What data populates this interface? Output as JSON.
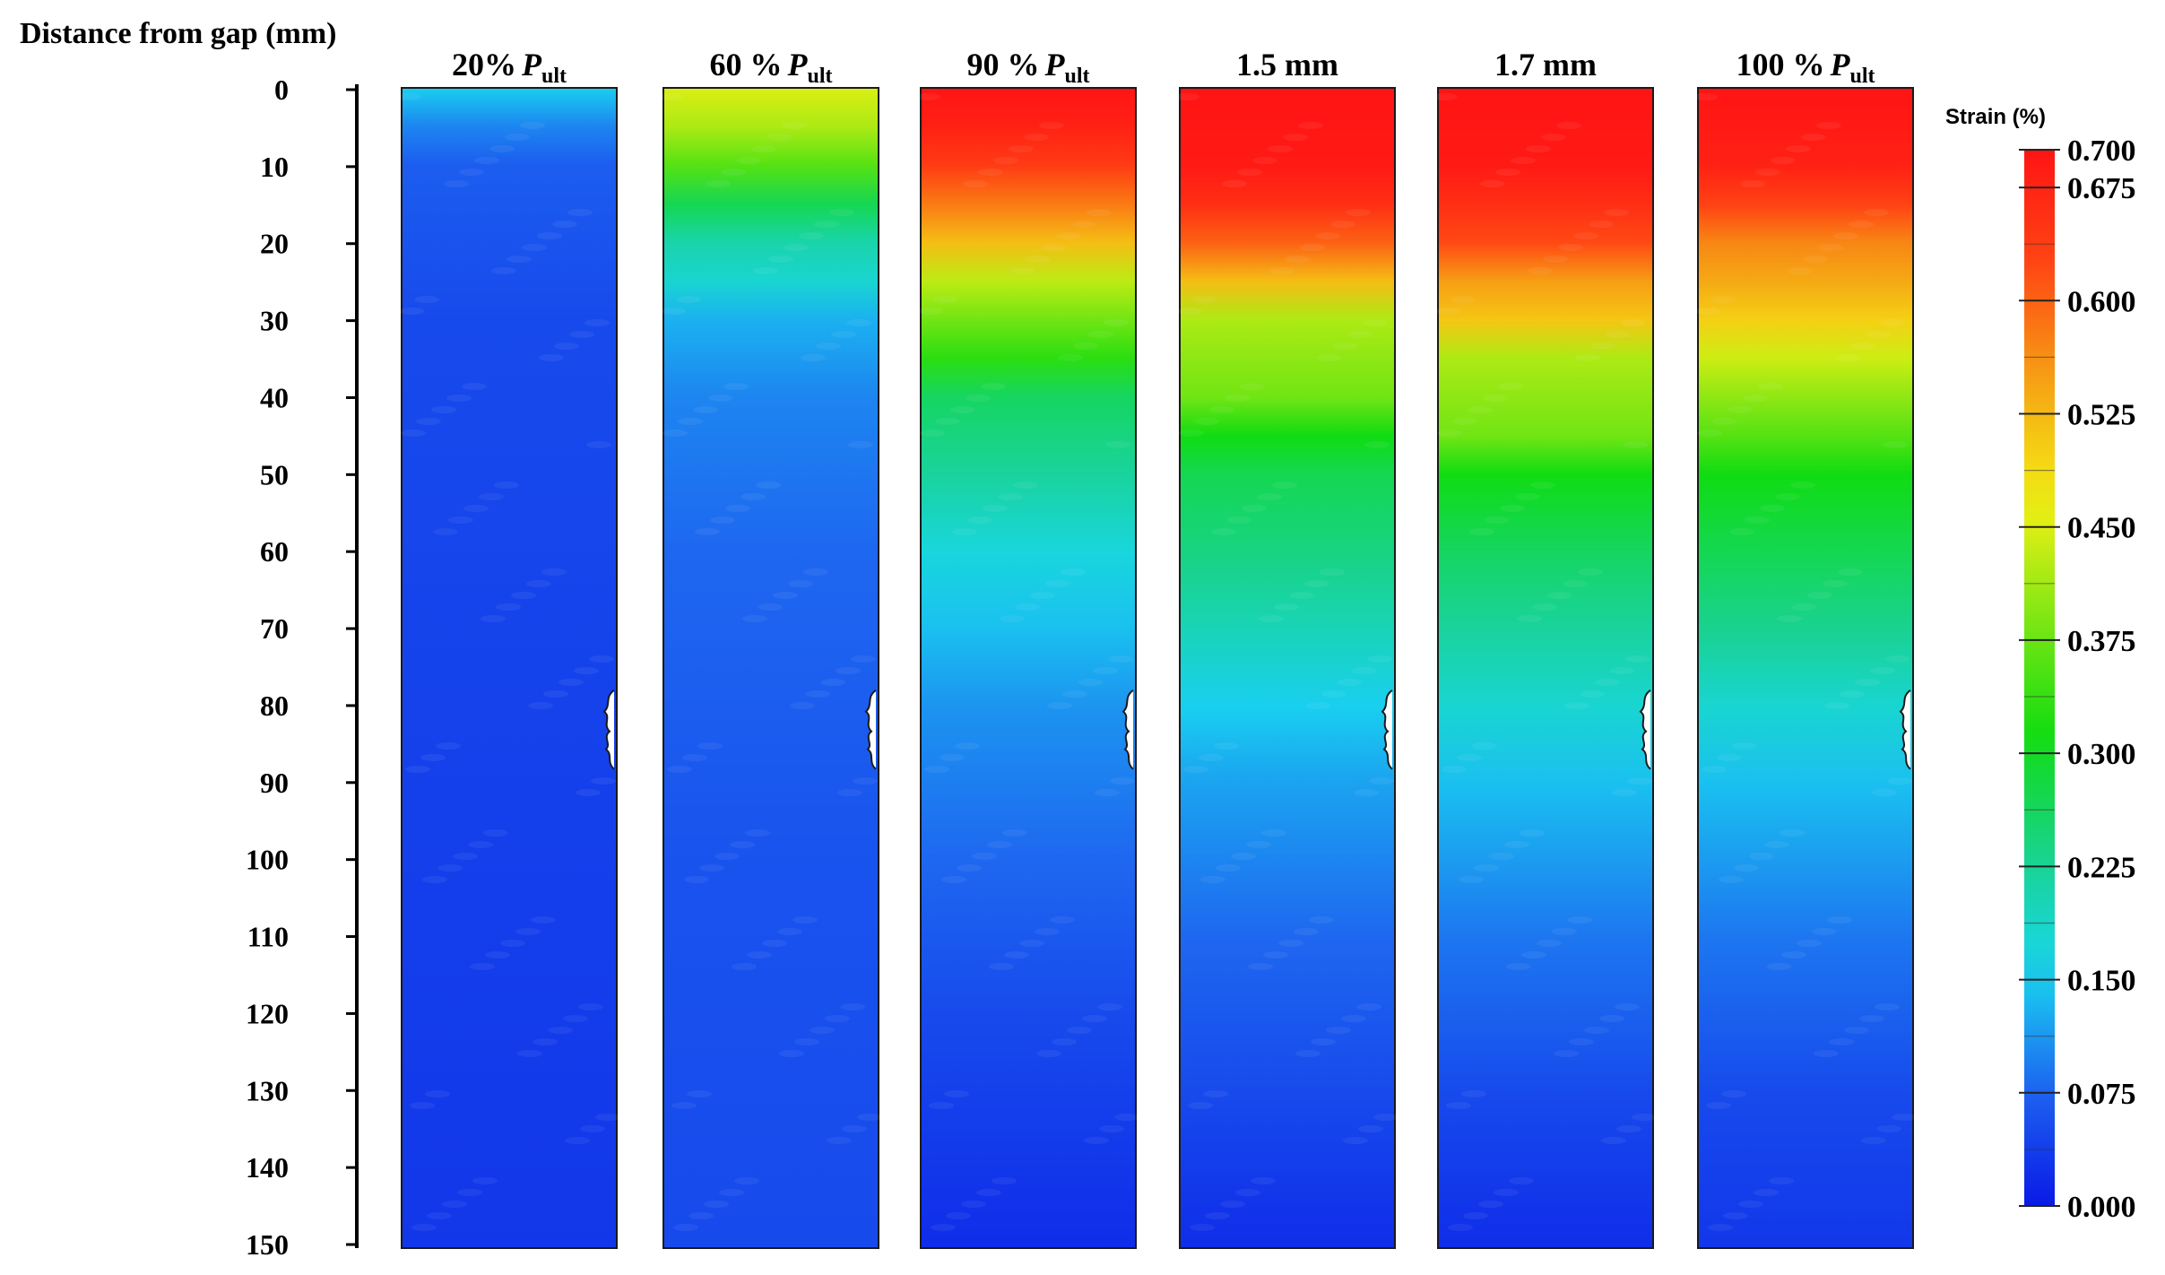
{
  "chart_data": {
    "type": "heatmap",
    "ylabel": "Distance from gap (mm)",
    "y_ticks": [
      0,
      10,
      20,
      30,
      40,
      50,
      60,
      70,
      80,
      90,
      100,
      110,
      120,
      130,
      140,
      150
    ],
    "ylim": [
      0,
      150
    ],
    "colorbar": {
      "title": "Strain (%)",
      "ticks": [
        "0.700",
        "0.675",
        "0.600",
        "0.525",
        "0.450",
        "0.375",
        "0.300",
        "0.225",
        "0.150",
        "0.075",
        "0.000"
      ],
      "tick_values": [
        0.7,
        0.675,
        0.6,
        0.525,
        0.45,
        0.375,
        0.3,
        0.225,
        0.15,
        0.075,
        0.0
      ],
      "range": [
        0.0,
        0.7
      ],
      "colors": [
        "#0a1ae6",
        "#1e64f0",
        "#19d7f0",
        "#19d28c",
        "#10dc10",
        "#7de614",
        "#f5f014",
        "#f5a514",
        "#ff4614",
        "#ff1414"
      ]
    },
    "panels": [
      {
        "label_main": "20%",
        "label_italic": "P",
        "label_sub": "ult",
        "profile": [
          [
            0,
            0.15
          ],
          [
            5,
            0.1
          ],
          [
            10,
            0.07
          ],
          [
            30,
            0.05
          ],
          [
            150,
            0.03
          ]
        ]
      },
      {
        "label_main": "60 %",
        "label_italic": "P",
        "label_sub": "ult",
        "profile": [
          [
            0,
            0.45
          ],
          [
            5,
            0.42
          ],
          [
            10,
            0.36
          ],
          [
            15,
            0.27
          ],
          [
            20,
            0.21
          ],
          [
            25,
            0.18
          ],
          [
            30,
            0.13
          ],
          [
            40,
            0.1
          ],
          [
            60,
            0.08
          ],
          [
            100,
            0.06
          ],
          [
            150,
            0.05
          ]
        ]
      },
      {
        "label_main": "90 %",
        "label_italic": "P",
        "label_sub": "ult",
        "profile": [
          [
            0,
            0.7
          ],
          [
            5,
            0.68
          ],
          [
            10,
            0.64
          ],
          [
            15,
            0.58
          ],
          [
            20,
            0.52
          ],
          [
            25,
            0.43
          ],
          [
            30,
            0.38
          ],
          [
            35,
            0.33
          ],
          [
            40,
            0.26
          ],
          [
            50,
            0.22
          ],
          [
            60,
            0.17
          ],
          [
            70,
            0.14
          ],
          [
            80,
            0.11
          ],
          [
            100,
            0.08
          ],
          [
            120,
            0.05
          ],
          [
            150,
            0.02
          ]
        ]
      },
      {
        "label_main": "1.5 mm",
        "label_italic": "",
        "label_sub": "",
        "profile": [
          [
            0,
            0.7
          ],
          [
            10,
            0.69
          ],
          [
            15,
            0.66
          ],
          [
            20,
            0.6
          ],
          [
            25,
            0.52
          ],
          [
            30,
            0.42
          ],
          [
            35,
            0.4
          ],
          [
            40,
            0.38
          ],
          [
            45,
            0.31
          ],
          [
            50,
            0.27
          ],
          [
            60,
            0.24
          ],
          [
            70,
            0.2
          ],
          [
            80,
            0.15
          ],
          [
            90,
            0.12
          ],
          [
            110,
            0.08
          ],
          [
            130,
            0.05
          ],
          [
            150,
            0.02
          ]
        ]
      },
      {
        "label_main": "1.7 mm",
        "label_italic": "",
        "label_sub": "",
        "profile": [
          [
            0,
            0.7
          ],
          [
            10,
            0.69
          ],
          [
            15,
            0.66
          ],
          [
            20,
            0.62
          ],
          [
            25,
            0.55
          ],
          [
            30,
            0.51
          ],
          [
            35,
            0.42
          ],
          [
            40,
            0.4
          ],
          [
            45,
            0.38
          ],
          [
            50,
            0.31
          ],
          [
            60,
            0.26
          ],
          [
            70,
            0.22
          ],
          [
            80,
            0.18
          ],
          [
            90,
            0.14
          ],
          [
            110,
            0.09
          ],
          [
            130,
            0.05
          ],
          [
            150,
            0.02
          ]
        ]
      },
      {
        "label_main": "100 %",
        "label_italic": "P",
        "label_sub": "ult",
        "profile": [
          [
            0,
            0.7
          ],
          [
            10,
            0.68
          ],
          [
            15,
            0.63
          ],
          [
            20,
            0.57
          ],
          [
            25,
            0.54
          ],
          [
            30,
            0.5
          ],
          [
            35,
            0.44
          ],
          [
            40,
            0.4
          ],
          [
            45,
            0.36
          ],
          [
            50,
            0.31
          ],
          [
            60,
            0.27
          ],
          [
            70,
            0.23
          ],
          [
            80,
            0.18
          ],
          [
            90,
            0.14
          ],
          [
            110,
            0.09
          ],
          [
            130,
            0.05
          ],
          [
            150,
            0.03
          ]
        ]
      }
    ]
  }
}
